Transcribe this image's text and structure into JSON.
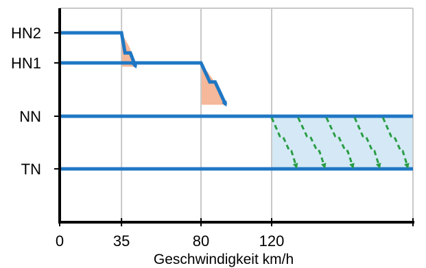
{
  "chart_data": {
    "type": "line",
    "title": "",
    "xlabel": "Geschwindigkeit km/h",
    "ylabel": "",
    "xlim": [
      0,
      200
    ],
    "x_ticks": [
      {
        "value": 0,
        "label": "0"
      },
      {
        "value": 35,
        "label": "35"
      },
      {
        "value": 80,
        "label": "80"
      },
      {
        "value": 120,
        "label": "120"
      },
      {
        "value": 200,
        "label": ""
      }
    ],
    "gridlines_x": [
      35,
      80,
      120,
      200
    ],
    "levels": [
      {
        "name": "HN2",
        "label": "HN2",
        "value": 4
      },
      {
        "name": "HN1",
        "label": "HN1",
        "value": 3.4
      },
      {
        "name": "NN",
        "label": "NN",
        "value": 2
      },
      {
        "name": "TN",
        "label": "TN",
        "value": 1
      }
    ],
    "ylim": [
      0,
      4.5
    ],
    "series": [
      {
        "name": "",
        "style": "solid",
        "color": "#1f77c4",
        "points": [
          [
            0,
            4
          ],
          [
            35,
            4
          ],
          [
            37,
            3.6
          ],
          [
            40,
            3.6
          ],
          [
            43,
            3.3
          ]
        ]
      },
      {
        "name": "",
        "style": "solid",
        "color": "#1f77c4",
        "points": [
          [
            0,
            3.4
          ],
          [
            80,
            3.4
          ],
          [
            85,
            2.9
          ],
          [
            88,
            2.9
          ],
          [
            94,
            2.3
          ]
        ]
      },
      {
        "name": "",
        "style": "solid",
        "color": "#1f77c4",
        "points": [
          [
            0,
            2
          ],
          [
            200,
            2
          ]
        ]
      },
      {
        "name": "",
        "style": "solid",
        "color": "#1f77c4",
        "points": [
          [
            0,
            1
          ],
          [
            200,
            1
          ]
        ]
      }
    ],
    "transitions": [
      {
        "style": "dashed",
        "color": "#2a9d45",
        "x_start": 120,
        "x_end": 134
      },
      {
        "style": "dashed",
        "color": "#2a9d45",
        "x_start": 135,
        "x_end": 150
      },
      {
        "style": "dashed",
        "color": "#2a9d45",
        "x_start": 151,
        "x_end": 166
      },
      {
        "style": "dashed",
        "color": "#2a9d45",
        "x_start": 167,
        "x_end": 181
      },
      {
        "style": "dashed",
        "color": "#2a9d45",
        "x_start": 183,
        "x_end": 197
      }
    ],
    "shaded_regions": [
      {
        "color": "#f5b89a",
        "x_start": 35,
        "x_end": 43,
        "y_top": 4,
        "y_bottom": 3.3
      },
      {
        "color": "#f5b89a",
        "x_start": 80,
        "x_end": 94,
        "y_top": 3.4,
        "y_bottom": 2.3
      },
      {
        "color": "#d4e9f5",
        "x_start": 120,
        "x_end": 200,
        "y_top": 2,
        "y_bottom": 1
      }
    ],
    "grid": true,
    "colors": {
      "level_line": "#1f77c4",
      "transition": "#2a9d45",
      "grid": "#c8c8c8",
      "axis": "#000000"
    }
  }
}
